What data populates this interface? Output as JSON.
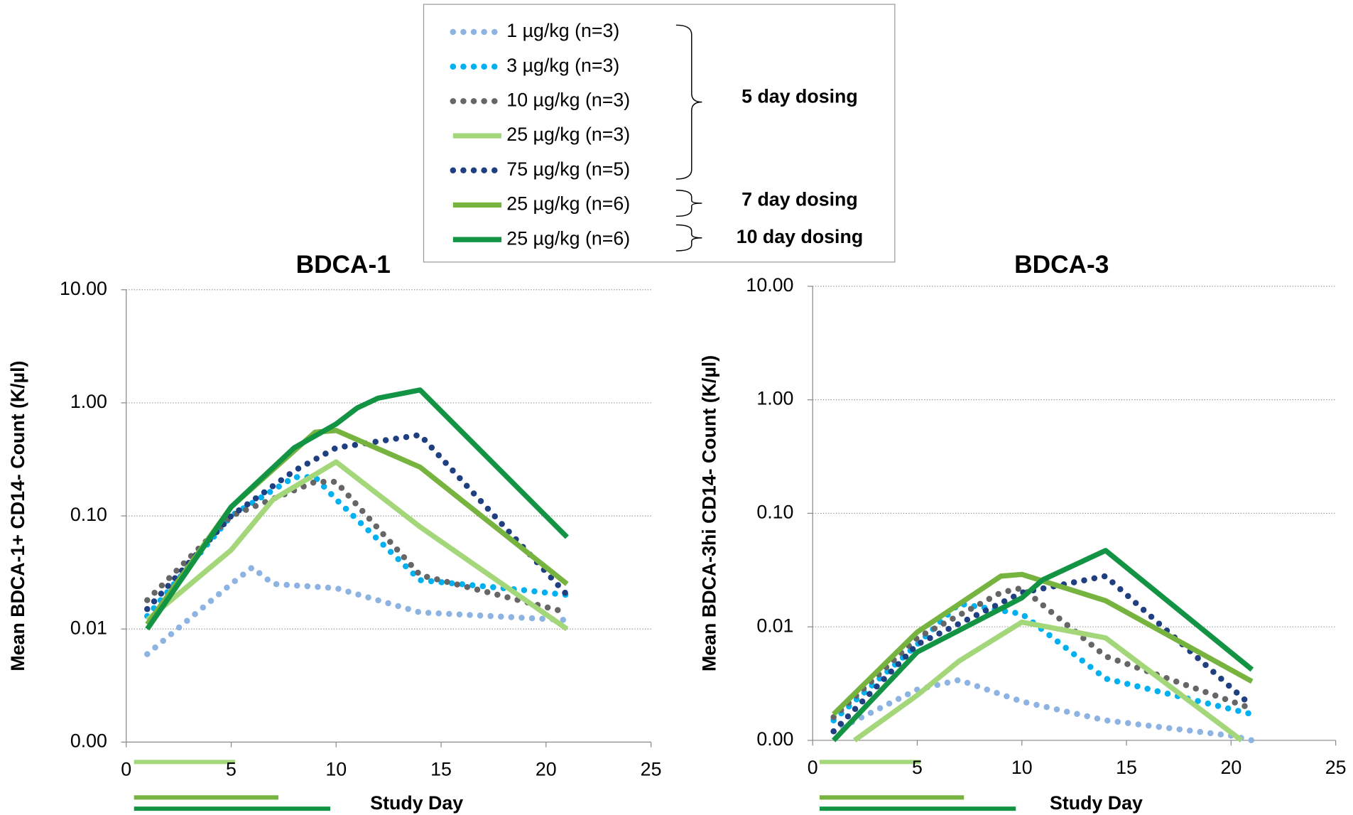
{
  "chart_data": [
    {
      "type": "line",
      "title": "BDCA-1",
      "xlabel": "Study Day",
      "ylabel": "Mean BDCA-1+ CD14- Count (K/µl)",
      "log_y": true,
      "grid": true,
      "legend": "top",
      "annotations": [
        "5 day dosing",
        "7 day dosing",
        "10 day dosing"
      ],
      "xlim": [
        0,
        25
      ],
      "xticks": [
        0,
        5,
        10,
        15,
        20,
        25
      ],
      "ylim": [
        0.001,
        10
      ],
      "yticks": [
        {
          "value": 0.001,
          "label": "0.00"
        },
        {
          "value": 0.01,
          "label": "0.01"
        },
        {
          "value": 0.1,
          "label": "0.10"
        },
        {
          "value": 1,
          "label": "1.00"
        },
        {
          "value": 10,
          "label": "10.00"
        }
      ],
      "series": [
        {
          "name": "1 µg/kg (n=3)",
          "color": "#8db3e2",
          "style": "dotted",
          "x": [
            1,
            5,
            6,
            7,
            10,
            14,
            21
          ],
          "values": [
            0.006,
            0.025,
            0.035,
            0.025,
            0.023,
            0.014,
            0.012
          ]
        },
        {
          "name": "3 µg/kg (n=3)",
          "color": "#00b0f0",
          "style": "dotted",
          "x": [
            1,
            5,
            8,
            9,
            10,
            14,
            19,
            21
          ],
          "values": [
            0.013,
            0.1,
            0.22,
            0.22,
            0.14,
            0.027,
            0.022,
            0.02
          ]
        },
        {
          "name": "10 µg/kg (n=3)",
          "color": "#666666",
          "style": "dotted",
          "x": [
            1,
            5,
            9,
            10,
            14,
            21
          ],
          "values": [
            0.018,
            0.1,
            0.2,
            0.2,
            0.03,
            0.014
          ]
        },
        {
          "name": "25 µg/kg (n=3)",
          "color": "#a3d77a",
          "style": "solid",
          "x": [
            1,
            5,
            7,
            10,
            14,
            21
          ],
          "values": [
            0.012,
            0.05,
            0.14,
            0.3,
            0.08,
            0.01
          ]
        },
        {
          "name": "75 µg/kg (n=5)",
          "color": "#203f80",
          "style": "dotted",
          "x": [
            1,
            5,
            8,
            10,
            14,
            21
          ],
          "values": [
            0.015,
            0.1,
            0.25,
            0.4,
            0.52,
            0.02
          ]
        },
        {
          "name": "25 µg/kg (n=6)",
          "color": "#77b33f",
          "style": "solid",
          "x": [
            1,
            5,
            9,
            10,
            14,
            21
          ],
          "values": [
            0.011,
            0.12,
            0.55,
            0.57,
            0.27,
            0.025
          ]
        },
        {
          "name": "25 µg/kg (n=6)",
          "color": "#139444",
          "style": "solid",
          "x": [
            1,
            5,
            8,
            10,
            11,
            12,
            14,
            21
          ],
          "values": [
            0.01,
            0.12,
            0.4,
            0.65,
            0.9,
            1.1,
            1.3,
            0.065
          ]
        }
      ]
    },
    {
      "type": "line",
      "title": "BDCA-3",
      "xlabel": "Study Day",
      "ylabel": "Mean BDCA-3hi CD14- Count (K/µl)",
      "log_y": true,
      "grid": true,
      "xlim": [
        0,
        25
      ],
      "xticks": [
        0,
        5,
        10,
        15,
        20,
        25
      ],
      "ylim": [
        0.001,
        10
      ],
      "yticks": [
        {
          "value": 0.001,
          "label": "0.00"
        },
        {
          "value": 0.01,
          "label": "0.01"
        },
        {
          "value": 0.1,
          "label": "0.10"
        },
        {
          "value": 1,
          "label": "1.00"
        },
        {
          "value": 10,
          "label": "10.00"
        }
      ],
      "series": [
        {
          "color": "#8db3e2",
          "style": "dotted",
          "x": [
            1,
            5,
            7,
            10,
            14,
            20,
            21
          ],
          "values": [
            0.0012,
            0.0028,
            0.0034,
            0.0022,
            0.0015,
            0.0011,
            0.001
          ]
        },
        {
          "color": "#00b0f0",
          "style": "dotted",
          "x": [
            1,
            5,
            7,
            10,
            14,
            21
          ],
          "values": [
            0.0015,
            0.007,
            0.016,
            0.013,
            0.0035,
            0.0017
          ]
        },
        {
          "color": "#666666",
          "style": "dotted",
          "x": [
            1,
            5,
            9,
            10,
            14,
            21
          ],
          "values": [
            0.0016,
            0.008,
            0.02,
            0.022,
            0.0055,
            0.0019
          ]
        },
        {
          "color": "#a3d77a",
          "style": "solid",
          "x": [
            2,
            5,
            7,
            10,
            14,
            20.5
          ],
          "values": [
            0.001,
            0.0025,
            0.005,
            0.011,
            0.008,
            0.001
          ]
        },
        {
          "color": "#203f80",
          "style": "dotted",
          "x": [
            1,
            5,
            10,
            14,
            21
          ],
          "values": [
            0.0012,
            0.007,
            0.02,
            0.028,
            0.002
          ]
        },
        {
          "color": "#77b33f",
          "style": "solid",
          "x": [
            1,
            5,
            9,
            10,
            14,
            21
          ],
          "values": [
            0.0017,
            0.009,
            0.028,
            0.029,
            0.017,
            0.0033
          ]
        },
        {
          "color": "#139444",
          "style": "solid",
          "x": [
            1,
            5,
            10,
            11,
            14,
            21
          ],
          "values": [
            0.001,
            0.006,
            0.018,
            0.026,
            0.047,
            0.0042
          ]
        }
      ]
    }
  ]
}
